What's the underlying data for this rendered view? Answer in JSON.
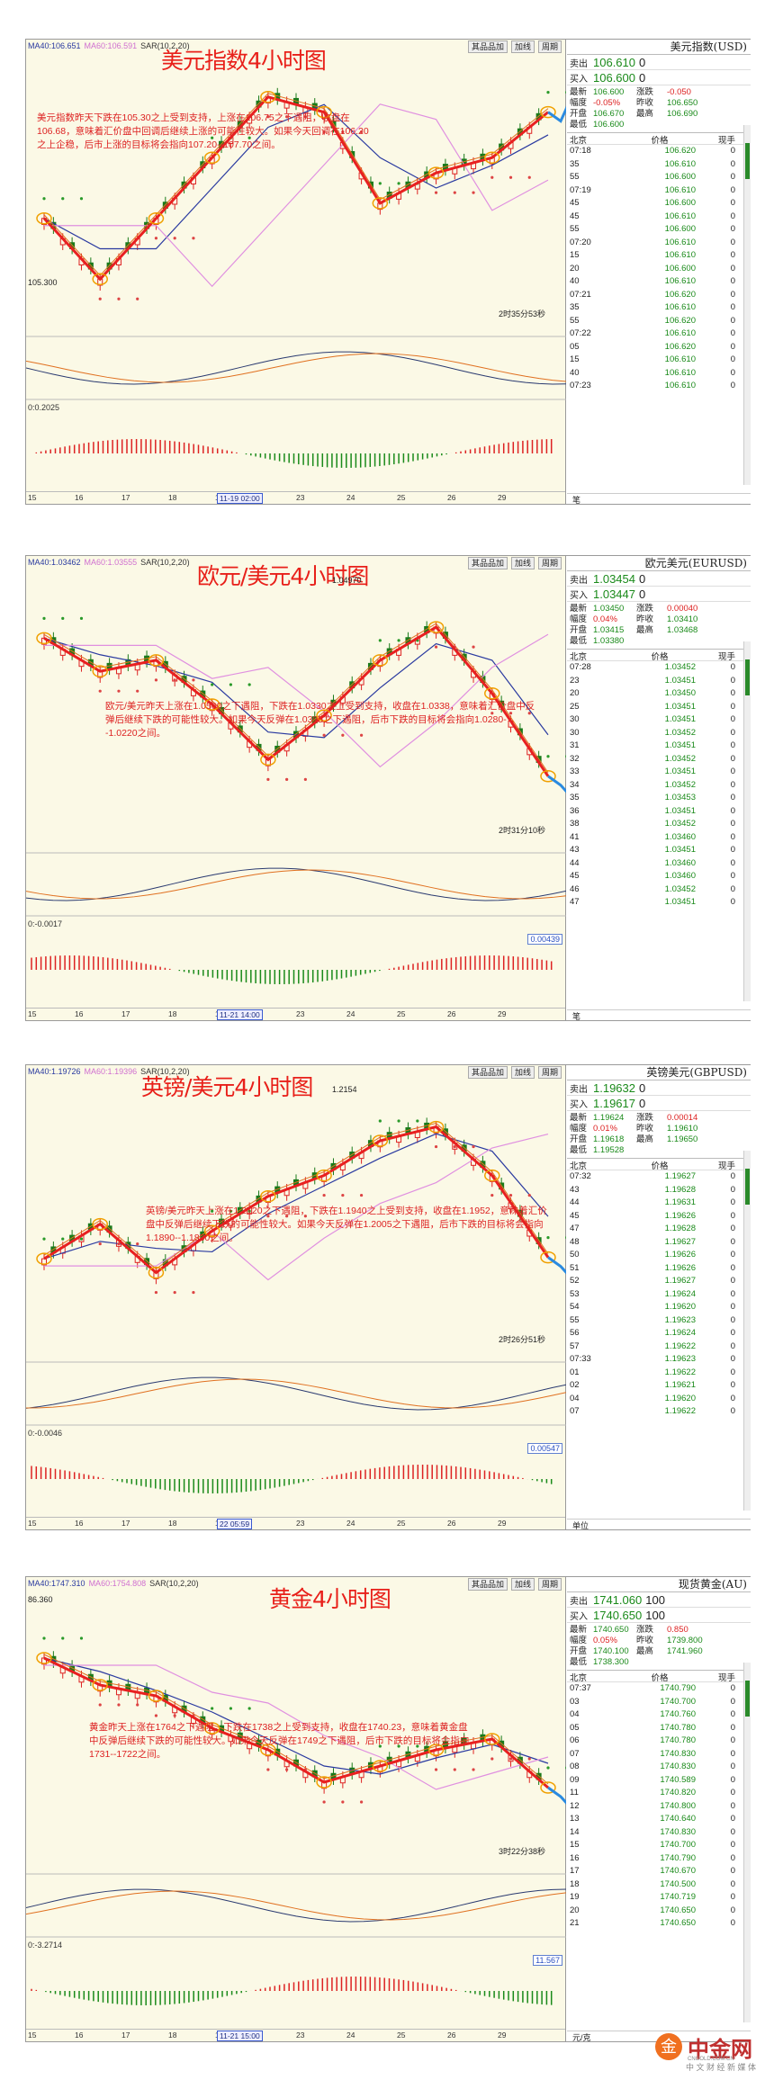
{
  "panels": [
    {
      "ma": [
        "MA40:106.651",
        "MA60:106.591",
        "SAR(10,2,20)"
      ],
      "title": "美元指数4小时图",
      "note": "美元指数昨天下跌在105.30之上受到支持，上涨在106.75之下遇阻，收盘在106.68，意味着汇价盘中回调后继续上涨的可能性较大。如果今天回调在106.20之上企稳，后市上涨的目标将会指向107.20--107.70之间。",
      "low_label": "105.300",
      "timer": "2时35分53秒",
      "macd_label": "0:0.2025",
      "valbox": "",
      "xticks": [
        "15",
        "16",
        "17",
        "18",
        "19",
        "11-19 02:00",
        "23",
        "24",
        "25",
        "26",
        "29"
      ],
      "btns": [
        "其品品加",
        "加线",
        "周期"
      ],
      "q": {
        "title": "美元指数(USD)",
        "sell": "106.610",
        "sell_lot": "0",
        "buy": "106.600",
        "buy_lot": "0",
        "stats": [
          [
            "最新",
            "106.600",
            "涨跌",
            "-0.050"
          ],
          [
            "幅度",
            "-0.05%",
            "昨收",
            "106.650"
          ],
          [
            "开盘",
            "106.670",
            "最高",
            "106.690"
          ],
          [
            "最低",
            "106.600",
            "",
            ""
          ]
        ],
        "head": [
          "北京",
          "价格",
          "现手"
        ],
        "ticks": [
          [
            "07:18",
            "106.620",
            "0"
          ],
          [
            "35",
            "106.610",
            "0"
          ],
          [
            "55",
            "106.600",
            "0"
          ],
          [
            "07:19",
            "106.610",
            "0"
          ],
          [
            "45",
            "106.600",
            "0"
          ],
          [
            "45",
            "106.610",
            "0"
          ],
          [
            "55",
            "106.600",
            "0"
          ],
          [
            "07:20",
            "106.610",
            "0"
          ],
          [
            "15",
            "106.610",
            "0"
          ],
          [
            "20",
            "106.600",
            "0"
          ],
          [
            "40",
            "106.610",
            "0"
          ],
          [
            "07:21",
            "106.620",
            "0"
          ],
          [
            "35",
            "106.610",
            "0"
          ],
          [
            "55",
            "106.620",
            "0"
          ],
          [
            "07:22",
            "106.610",
            "0"
          ],
          [
            "05",
            "106.620",
            "0"
          ],
          [
            "15",
            "106.610",
            "0"
          ],
          [
            "40",
            "106.610",
            "0"
          ],
          [
            "07:23",
            "106.610",
            "0"
          ],
          [
            "50",
            "106.600",
            "0"
          ]
        ],
        "foot": "笔"
      }
    },
    {
      "ma": [
        "MA40:1.03462",
        "MA60:1.03555",
        "SAR(10,2,20)"
      ],
      "title": "欧元/美元4小时图",
      "note": "欧元/美元昨天上涨在1.0500之下遇阻，下跌在1.0330之上受到支持，收盘在1.0338，意味着汇价盘中反弹后继续下跌的可能性较大。如果今天反弹在1.0395之下遇阻，后市下跌的目标将会指向1.0280--1.0220之间。",
      "low_label": "1.04970",
      "timer": "2时31分10秒",
      "macd_label": "0:-0.0017",
      "valbox": "0.00439",
      "xticks": [
        "15",
        "16",
        "17",
        "18",
        "19",
        "11-21 14:00",
        "23",
        "24",
        "25",
        "26",
        "29"
      ],
      "btns": [
        "其品品加",
        "加线",
        "周期"
      ],
      "q": {
        "title": "欧元美元(EURUSD)",
        "sell": "1.03454",
        "sell_lot": "0",
        "buy": "1.03447",
        "buy_lot": "0",
        "stats": [
          [
            "最新",
            "1.03450",
            "涨跌",
            "0.00040"
          ],
          [
            "幅度",
            "0.04%",
            "昨收",
            "1.03410"
          ],
          [
            "开盘",
            "1.03415",
            "最高",
            "1.03468"
          ],
          [
            "最低",
            "1.03380",
            "",
            ""
          ]
        ],
        "head": [
          "北京",
          "价格",
          "现手"
        ],
        "ticks": [
          [
            "07:28",
            "1.03452",
            "0"
          ],
          [
            "23",
            "1.03451",
            "0"
          ],
          [
            "20",
            "1.03450",
            "0"
          ],
          [
            "25",
            "1.03451",
            "0"
          ],
          [
            "30",
            "1.03451",
            "0"
          ],
          [
            "30",
            "1.03452",
            "0"
          ],
          [
            "31",
            "1.03451",
            "0"
          ],
          [
            "32",
            "1.03452",
            "0"
          ],
          [
            "33",
            "1.03451",
            "0"
          ],
          [
            "34",
            "1.03452",
            "0"
          ],
          [
            "35",
            "1.03453",
            "0"
          ],
          [
            "36",
            "1.03451",
            "0"
          ],
          [
            "38",
            "1.03452",
            "0"
          ],
          [
            "41",
            "1.03460",
            "0"
          ],
          [
            "43",
            "1.03451",
            "0"
          ],
          [
            "44",
            "1.03460",
            "0"
          ],
          [
            "45",
            "1.03460",
            "0"
          ],
          [
            "46",
            "1.03452",
            "0"
          ],
          [
            "47",
            "1.03451",
            "0"
          ],
          [
            "48",
            "1.03450",
            "0"
          ]
        ],
        "foot": "笔"
      }
    },
    {
      "ma": [
        "MA40:1.19726",
        "MA60:1.19396",
        "SAR(10,2,20)"
      ],
      "title": "英镑/美元4小时图",
      "note": "英镑/美元昨天上涨在1.2120之下遇阻，下跌在1.1940之上受到支持，收盘在1.1952，意味着汇价盘中反弹后继续下跌的可能性较大。如果今天反弹在1.2005之下遇阻，后市下跌的目标将会指向1.1890--1.1830之间。",
      "low_label": "1.2154",
      "timer": "2时26分51秒",
      "macd_label": "0:-0.0046",
      "valbox": "0.00547",
      "xticks": [
        "15",
        "16",
        "17",
        "18",
        "19",
        "22 05:59",
        "23",
        "24",
        "25",
        "26",
        "29"
      ],
      "btns": [
        "其品品加",
        "加线",
        "周期"
      ],
      "q": {
        "title": "英镑美元(GBPUSD)",
        "sell": "1.19632",
        "sell_lot": "0",
        "buy": "1.19617",
        "buy_lot": "0",
        "stats": [
          [
            "最新",
            "1.19624",
            "涨跌",
            "0.00014"
          ],
          [
            "幅度",
            "0.01%",
            "昨收",
            "1.19610"
          ],
          [
            "开盘",
            "1.19618",
            "最高",
            "1.19650"
          ],
          [
            "最低",
            "1.19528",
            "",
            ""
          ]
        ],
        "head": [
          "北京",
          "价格",
          "现手"
        ],
        "ticks": [
          [
            "07:32",
            "1.19627",
            "0"
          ],
          [
            "43",
            "1.19628",
            "0"
          ],
          [
            "44",
            "1.19631",
            "0"
          ],
          [
            "45",
            "1.19626",
            "0"
          ],
          [
            "47",
            "1.19628",
            "0"
          ],
          [
            "48",
            "1.19627",
            "0"
          ],
          [
            "50",
            "1.19626",
            "0"
          ],
          [
            "51",
            "1.19626",
            "0"
          ],
          [
            "52",
            "1.19627",
            "0"
          ],
          [
            "53",
            "1.19624",
            "0"
          ],
          [
            "54",
            "1.19620",
            "0"
          ],
          [
            "55",
            "1.19623",
            "0"
          ],
          [
            "56",
            "1.19624",
            "0"
          ],
          [
            "57",
            "1.19622",
            "0"
          ],
          [
            "07:33",
            "1.19623",
            "0"
          ],
          [
            "01",
            "1.19622",
            "0"
          ],
          [
            "02",
            "1.19621",
            "0"
          ],
          [
            "04",
            "1.19620",
            "0"
          ],
          [
            "07",
            "1.19622",
            "0"
          ],
          [
            "08",
            "1.19624",
            "0"
          ]
        ],
        "foot": "单位"
      }
    },
    {
      "ma": [
        "MA40:1747.310",
        "MA60:1754.808",
        "SAR(10,2,20)"
      ],
      "title": "黄金4小时图",
      "note": "黄金昨天上涨在1764之下遇阻，下跌在1738之上受到支持，收盘在1740.23，意味着黄金盘中反弹后继续下跌的可能性较大。如果今天反弹在1749之下遇阻，后市下跌的目标将会指向1731--1722之间。",
      "low_label": "86.360",
      "timer": "3时22分38秒",
      "macd_label": "0:-3.2714",
      "valbox": "11.567",
      "xticks": [
        "15",
        "16",
        "17",
        "18",
        "19",
        "11-21 15:00",
        "23",
        "24",
        "25",
        "26",
        "29"
      ],
      "btns": [
        "其品品加",
        "加线",
        "周期"
      ],
      "q": {
        "title": "现货黄金(AU)",
        "sell": "1741.060",
        "sell_lot": "100",
        "buy": "1740.650",
        "buy_lot": "100",
        "stats": [
          [
            "最新",
            "1740.650",
            "涨跌",
            "0.850"
          ],
          [
            "幅度",
            "0.05%",
            "昨收",
            "1739.800"
          ],
          [
            "开盘",
            "1740.100",
            "最高",
            "1741.960"
          ],
          [
            "最低",
            "1738.300",
            "",
            ""
          ]
        ],
        "head": [
          "北京",
          "价格",
          "现手"
        ],
        "ticks": [
          [
            "07:37",
            "1740.790",
            "0"
          ],
          [
            "03",
            "1740.700",
            "0"
          ],
          [
            "04",
            "1740.760",
            "0"
          ],
          [
            "05",
            "1740.780",
            "0"
          ],
          [
            "06",
            "1740.780",
            "0"
          ],
          [
            "07",
            "1740.830",
            "0"
          ],
          [
            "08",
            "1740.830",
            "0"
          ],
          [
            "09",
            "1740.589",
            "0"
          ],
          [
            "11",
            "1740.820",
            "0"
          ],
          [
            "12",
            "1740.800",
            "0"
          ],
          [
            "13",
            "1740.640",
            "0"
          ],
          [
            "14",
            "1740.830",
            "0"
          ],
          [
            "15",
            "1740.700",
            "0"
          ],
          [
            "16",
            "1740.790",
            "0"
          ],
          [
            "17",
            "1740.670",
            "0"
          ],
          [
            "18",
            "1740.500",
            "0"
          ],
          [
            "19",
            "1740.719",
            "0"
          ],
          [
            "20",
            "1740.650",
            "0"
          ],
          [
            "21",
            "1740.650",
            "0"
          ],
          [
            "22",
            "1740.660",
            "0"
          ]
        ],
        "foot": "元/克"
      }
    }
  ],
  "watermark": {
    "name": "中金网",
    "url": "CNGOLD.COM.CN",
    "slogan": "中 文 财 经 新 媒 体"
  },
  "chart_data": [
    {
      "type": "candlestick",
      "title": "美元指数4小时图",
      "x": [
        "15",
        "16",
        "17",
        "18",
        "19",
        "23",
        "24",
        "25",
        "26",
        "29"
      ],
      "close": [
        105.9,
        105.5,
        105.9,
        106.3,
        106.7,
        106.6,
        106.0,
        106.2,
        106.3,
        106.6
      ],
      "ylim": [
        105.3,
        106.9
      ]
    },
    {
      "type": "candlestick",
      "title": "欧元/美元4小时图",
      "x": [
        "15",
        "16",
        "17",
        "18",
        "19",
        "23",
        "24",
        "25",
        "26",
        "29"
      ],
      "close": [
        1.047,
        1.044,
        1.045,
        1.041,
        1.036,
        1.04,
        1.045,
        1.048,
        1.042,
        1.0345
      ],
      "ylim": [
        1.03,
        1.052
      ]
    },
    {
      "type": "candlestick",
      "title": "英镑/美元4小时图",
      "x": [
        "15",
        "16",
        "17",
        "18",
        "19",
        "23",
        "24",
        "25",
        "26",
        "29"
      ],
      "close": [
        1.196,
        1.201,
        1.194,
        1.2,
        1.205,
        1.208,
        1.213,
        1.215,
        1.208,
        1.1962
      ],
      "ylim": [
        1.185,
        1.22
      ]
    },
    {
      "type": "candlestick",
      "title": "黄金4小时图",
      "x": [
        "15",
        "16",
        "17",
        "18",
        "19",
        "23",
        "24",
        "25",
        "26",
        "29"
      ],
      "close": [
        1765,
        1760,
        1758,
        1752,
        1748,
        1742,
        1745,
        1748,
        1750,
        1741
      ],
      "ylim": [
        1730,
        1775
      ]
    }
  ]
}
